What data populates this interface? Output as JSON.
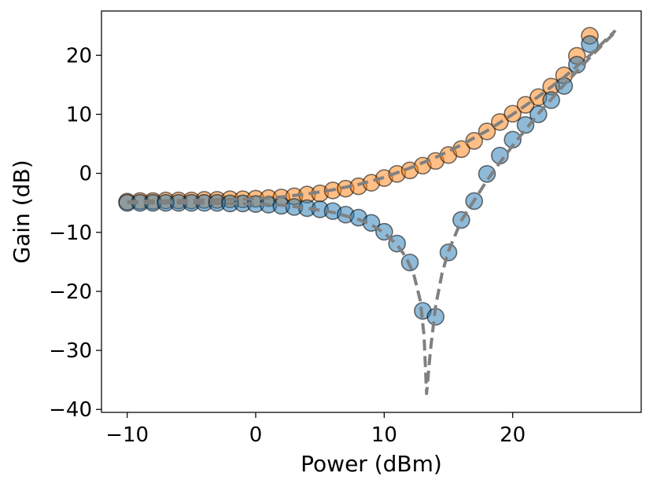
{
  "chart_data": {
    "type": "scatter",
    "title": "",
    "xlabel": "Power (dBm)",
    "ylabel": "Gain (dB)",
    "xlim": [
      -12,
      30
    ],
    "ylim": [
      -40.5,
      27.5
    ],
    "xticks": [
      -10,
      0,
      10,
      20
    ],
    "yticks": [
      20,
      10,
      0,
      -10,
      -20,
      -30,
      -40
    ],
    "xtick_labels": [
      "−10",
      "0",
      "10",
      "20"
    ],
    "ytick_labels": [
      "20",
      "10",
      "0",
      "−10",
      "−20",
      "−30",
      "−40"
    ],
    "grid": false,
    "legend": null,
    "series": [
      {
        "name": "orange-data",
        "color": "#ff7f0e",
        "marker": "circle",
        "x": [
          -10,
          -9,
          -8,
          -7,
          -6,
          -5,
          -4,
          -3,
          -2,
          -1,
          0,
          1,
          2,
          3,
          4,
          5,
          6,
          7,
          8,
          9,
          10,
          11,
          12,
          13,
          14,
          15,
          16,
          17,
          18,
          19,
          20,
          21,
          22,
          23,
          24,
          25,
          26
        ],
        "y": [
          -4.8,
          -4.7,
          -4.7,
          -4.6,
          -4.6,
          -4.6,
          -4.5,
          -4.5,
          -4.4,
          -4.4,
          -4.3,
          -4.2,
          -4.1,
          -3.9,
          -3.6,
          -3.4,
          -2.9,
          -2.6,
          -2.2,
          -1.6,
          -0.8,
          -0.1,
          0.5,
          1.3,
          2.1,
          3.1,
          4.1,
          5.5,
          7.1,
          8.7,
          10.1,
          11.6,
          12.9,
          14.7,
          16.6,
          19.9,
          23.3
        ]
      },
      {
        "name": "blue-data",
        "color": "#1f77b4",
        "marker": "circle",
        "x": [
          -10,
          -9,
          -8,
          -7,
          -6,
          -5,
          -4,
          -3,
          -2,
          -1,
          0,
          1,
          2,
          3,
          4,
          5,
          6,
          7,
          8,
          9,
          10,
          11,
          12,
          13,
          14,
          15,
          16,
          17,
          18,
          19,
          20,
          21,
          22,
          23,
          24,
          25,
          26
        ],
        "y": [
          -5.0,
          -5.0,
          -5.0,
          -5.0,
          -5.0,
          -5.0,
          -5.0,
          -5.0,
          -5.1,
          -5.1,
          -5.2,
          -5.3,
          -5.5,
          -5.7,
          -5.9,
          -6.1,
          -6.4,
          -7.0,
          -7.5,
          -8.4,
          -9.9,
          -11.9,
          -15.1,
          -23.3,
          -24.3,
          -13.4,
          -7.9,
          -4.7,
          -0.1,
          3.0,
          5.7,
          8.2,
          10.0,
          12.4,
          14.8,
          18.4,
          21.9
        ]
      },
      {
        "name": "fit-curve-upper",
        "color": "#808080",
        "style": "dashed",
        "x": [
          -10,
          -5,
          0,
          2,
          4,
          6,
          8,
          10,
          12,
          14,
          16,
          18,
          20,
          22,
          24,
          26,
          28
        ],
        "y": [
          -4.8,
          -4.6,
          -4.3,
          -4.0,
          -3.5,
          -2.8,
          -1.9,
          -0.7,
          0.9,
          2.7,
          4.8,
          7.2,
          10.0,
          13.0,
          16.3,
          20.0,
          24.2
        ]
      },
      {
        "name": "fit-curve-lower",
        "color": "#808080",
        "style": "dashed",
        "x": [
          -10,
          -5,
          0,
          2,
          4,
          6,
          8,
          9,
          10,
          11,
          11.7,
          12.3,
          12.8,
          13.1,
          13.3,
          13.6,
          14,
          14.5,
          15,
          16,
          17,
          18,
          19,
          20,
          22,
          24,
          26,
          28
        ],
        "y": [
          -5.0,
          -5.0,
          -5.2,
          -5.4,
          -5.9,
          -6.6,
          -7.8,
          -8.7,
          -10.1,
          -12.1,
          -14.2,
          -17.1,
          -21.5,
          -27.5,
          -37.3,
          -30.0,
          -22.5,
          -17.0,
          -13.2,
          -8.0,
          -4.6,
          -1.2,
          1.8,
          4.7,
          10.1,
          15.0,
          19.6,
          24.0
        ]
      }
    ]
  }
}
